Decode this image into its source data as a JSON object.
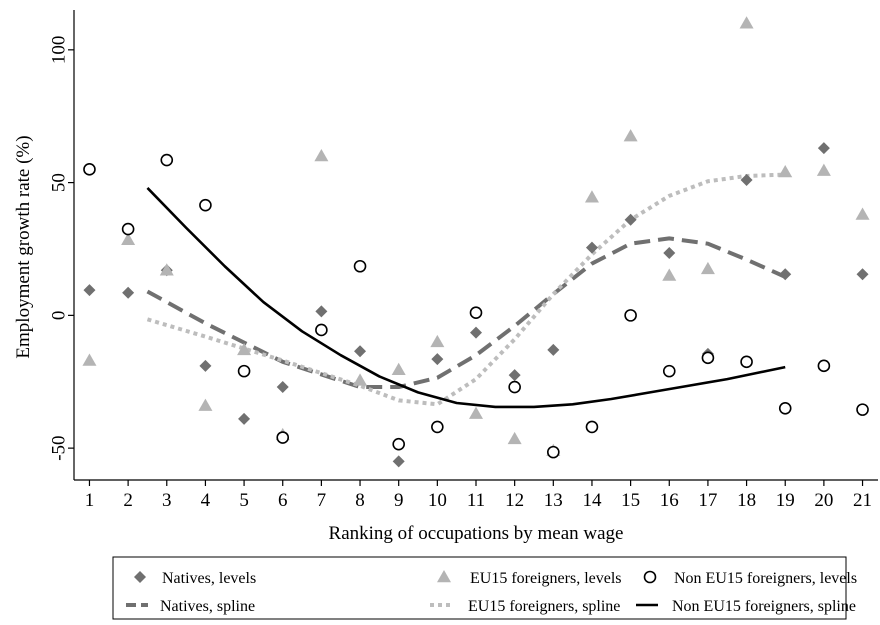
{
  "chart_data": {
    "type": "scatter",
    "title": "",
    "xlabel": "Ranking of occupations by mean wage",
    "ylabel": "Employment growth rate (%)",
    "xlim": [
      0.6,
      21.4
    ],
    "ylim": [
      -62,
      115
    ],
    "x_ticks": [
      "1",
      "2",
      "3",
      "4",
      "5",
      "6",
      "7",
      "8",
      "9",
      "10",
      "11",
      "12",
      "13",
      "14",
      "15",
      "16",
      "17",
      "18",
      "19",
      "20",
      "21"
    ],
    "y_ticks": [
      {
        "value": -50,
        "label": "-50"
      },
      {
        "value": 0,
        "label": "0"
      },
      {
        "value": 50,
        "label": "50"
      },
      {
        "value": 100,
        "label": "100"
      }
    ],
    "grid": false,
    "legend_position": "bottom",
    "series": [
      {
        "name": "Natives, levels",
        "kind": "points",
        "marker": "diamond",
        "color": "#707070",
        "x": [
          1,
          2,
          3,
          4,
          5,
          6,
          7,
          8,
          9,
          10,
          11,
          12,
          13,
          14,
          15,
          16,
          17,
          18,
          19,
          20,
          21
        ],
        "y": [
          9.5,
          8.5,
          17,
          -19,
          -39,
          -27,
          1.5,
          -13.5,
          -55,
          -16.5,
          -6.5,
          -22.5,
          -13,
          25.5,
          36,
          23.5,
          -14.5,
          51,
          15.5,
          63,
          15.5
        ]
      },
      {
        "name": "EU15 foreigners, levels",
        "kind": "points",
        "marker": "triangle",
        "color": "#b4b4b4",
        "x": [
          1,
          2,
          3,
          4,
          5,
          6,
          7,
          8,
          9,
          10,
          11,
          12,
          13,
          14,
          15,
          16,
          17,
          18,
          19,
          20,
          21
        ],
        "y": [
          -17,
          28.5,
          17,
          -34,
          -13,
          -45,
          60,
          -24.5,
          -20.5,
          -10,
          -37,
          -46.5,
          -51,
          44.5,
          67.5,
          15,
          17.5,
          110,
          54,
          54.5,
          38
        ]
      },
      {
        "name": "Non EU15 foreigners, levels",
        "kind": "points",
        "marker": "circle",
        "color": "#000000",
        "x": [
          1,
          2,
          3,
          4,
          5,
          6,
          7,
          8,
          9,
          10,
          11,
          12,
          13,
          14,
          15,
          16,
          17,
          18,
          19,
          20,
          21
        ],
        "y": [
          55,
          32.5,
          58.5,
          41.5,
          -21,
          -46,
          -5.5,
          18.5,
          -48.5,
          -42,
          1,
          -27,
          -51.5,
          -42,
          0,
          -21,
          -16,
          -17.5,
          -35,
          -19,
          -35.5
        ]
      },
      {
        "name": "Natives, spline",
        "kind": "line",
        "dash": "dash",
        "color": "#707070",
        "x": [
          2.5,
          4,
          6,
          8,
          9,
          10,
          11,
          12,
          13,
          14,
          15,
          16,
          17,
          18,
          19
        ],
        "y": [
          9,
          -3,
          -17.5,
          -27,
          -27,
          -23.5,
          -15,
          -4,
          8,
          19.5,
          27,
          29,
          27,
          21,
          14.5
        ]
      },
      {
        "name": "EU15 foreigners, spline",
        "kind": "line",
        "dash": "dot",
        "color": "#bdbdbd",
        "x": [
          2.5,
          4,
          6,
          8,
          9,
          10,
          11,
          12,
          13,
          14,
          15,
          16,
          17,
          18,
          19
        ],
        "y": [
          -1.5,
          -8,
          -17,
          -26.5,
          -32,
          -33.5,
          -24,
          -9,
          8,
          23,
          36,
          45,
          50.5,
          52.5,
          53
        ]
      },
      {
        "name": "Non EU15 foreigners, spline",
        "kind": "line",
        "dash": "solid",
        "color": "#000000",
        "x": [
          2.5,
          3.5,
          4.5,
          5.5,
          6.5,
          7.5,
          8.5,
          9.5,
          10.5,
          11.5,
          12.5,
          13.5,
          14.5,
          15.5,
          16.5,
          17.5,
          18.5,
          19
        ],
        "y": [
          48,
          33,
          18.5,
          5,
          -6,
          -15,
          -23,
          -29,
          -33,
          -34.5,
          -34.5,
          -33.5,
          -31.5,
          -29,
          -26.5,
          -24,
          -21,
          -19.5
        ]
      }
    ]
  }
}
